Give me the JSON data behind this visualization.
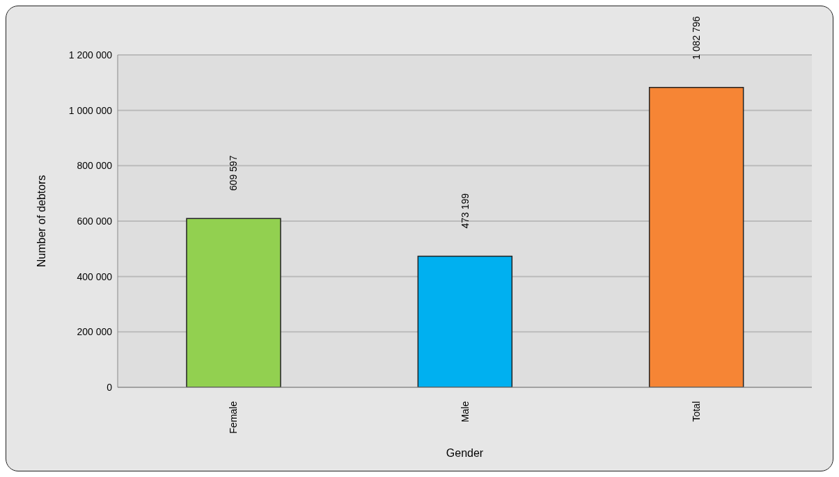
{
  "chart_data": {
    "type": "bar",
    "xlabel": "Gender",
    "ylabel": "Number of debtors",
    "categories": [
      "Female",
      "Male",
      "Total"
    ],
    "values": [
      609597,
      473199,
      1082796
    ],
    "colors": [
      "#92d050",
      "#00b0f0",
      "#f68535"
    ],
    "value_labels": [
      "609 597",
      "473 199",
      "1 082 796"
    ],
    "ylim": [
      0,
      1200000
    ],
    "yticks": [
      0,
      {
        "value": 200000,
        "label": "200 000"
      },
      {
        "value": 400000,
        "label": "400 000"
      },
      {
        "value": 600000,
        "label": "600 000"
      },
      {
        "value": 800000,
        "label": "800 000"
      },
      {
        "value": 1000000,
        "label": "1 000 000"
      },
      {
        "value": 1200000,
        "label": "1 200 000"
      }
    ],
    "grid": "y",
    "legend": false
  }
}
